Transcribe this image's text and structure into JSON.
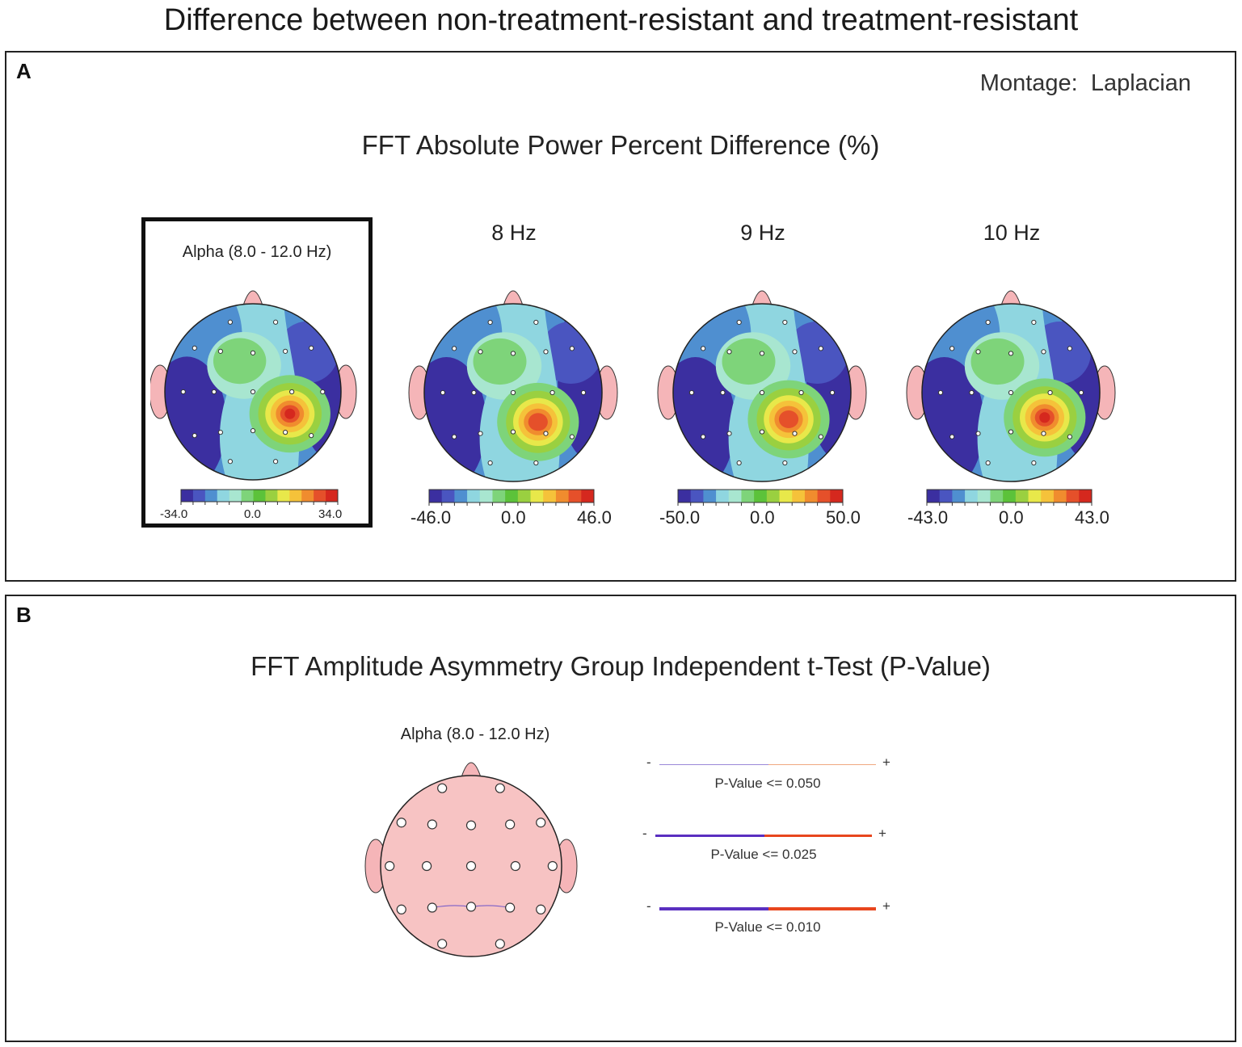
{
  "figure": {
    "title": "Difference between non-treatment-resistant and treatment-resistant"
  },
  "panel_a": {
    "letter": "A",
    "montage_label": "Montage:",
    "montage_value": "Laplacian",
    "title": "FFT Absolute Power Percent Difference  (%)",
    "maps": [
      {
        "label": "Alpha (8.0 - 12.0 Hz)",
        "scale_min": "-34.0",
        "scale_mid": "0.0",
        "scale_max": "34.0",
        "selected": true
      },
      {
        "label": "8 Hz",
        "scale_min": "-46.0",
        "scale_mid": "0.0",
        "scale_max": "46.0",
        "selected": false
      },
      {
        "label": "9 Hz",
        "scale_min": "-50.0",
        "scale_mid": "0.0",
        "scale_max": "50.0",
        "selected": false
      },
      {
        "label": "10 Hz",
        "scale_min": "-43.0",
        "scale_mid": "0.0",
        "scale_max": "43.0",
        "selected": false
      }
    ],
    "colors": {
      "scale": [
        "#3b2fa0",
        "#4a55c0",
        "#4f8fd0",
        "#8fd6e0",
        "#a8e6d0",
        "#7ed47a",
        "#5cc23a",
        "#9ad040",
        "#e8e84a",
        "#f5c23a",
        "#f08c2e",
        "#e5502a",
        "#d5281e"
      ]
    }
  },
  "panel_b": {
    "letter": "B",
    "title": "FFT Amplitude Asymmetry Group Independent t-Test  (P-Value)",
    "map_label": "Alpha (8.0 - 12.0 Hz)",
    "legend": [
      {
        "minus": "-",
        "plus": "+",
        "label": "P-Value <= 0.050",
        "neg_color": "#9a88d8",
        "pos_color": "#f0a880"
      },
      {
        "minus": "-",
        "plus": "+",
        "label": "P-Value <= 0.025",
        "neg_color": "#5a2fc0",
        "pos_color": "#e8461e"
      },
      {
        "minus": "-",
        "plus": "+",
        "label": "P-Value <= 0.010",
        "neg_color": "#5a2fc0",
        "pos_color": "#e8461e"
      }
    ],
    "head_color": "#f7c3c3",
    "connection_color": "#7b5fc8"
  }
}
